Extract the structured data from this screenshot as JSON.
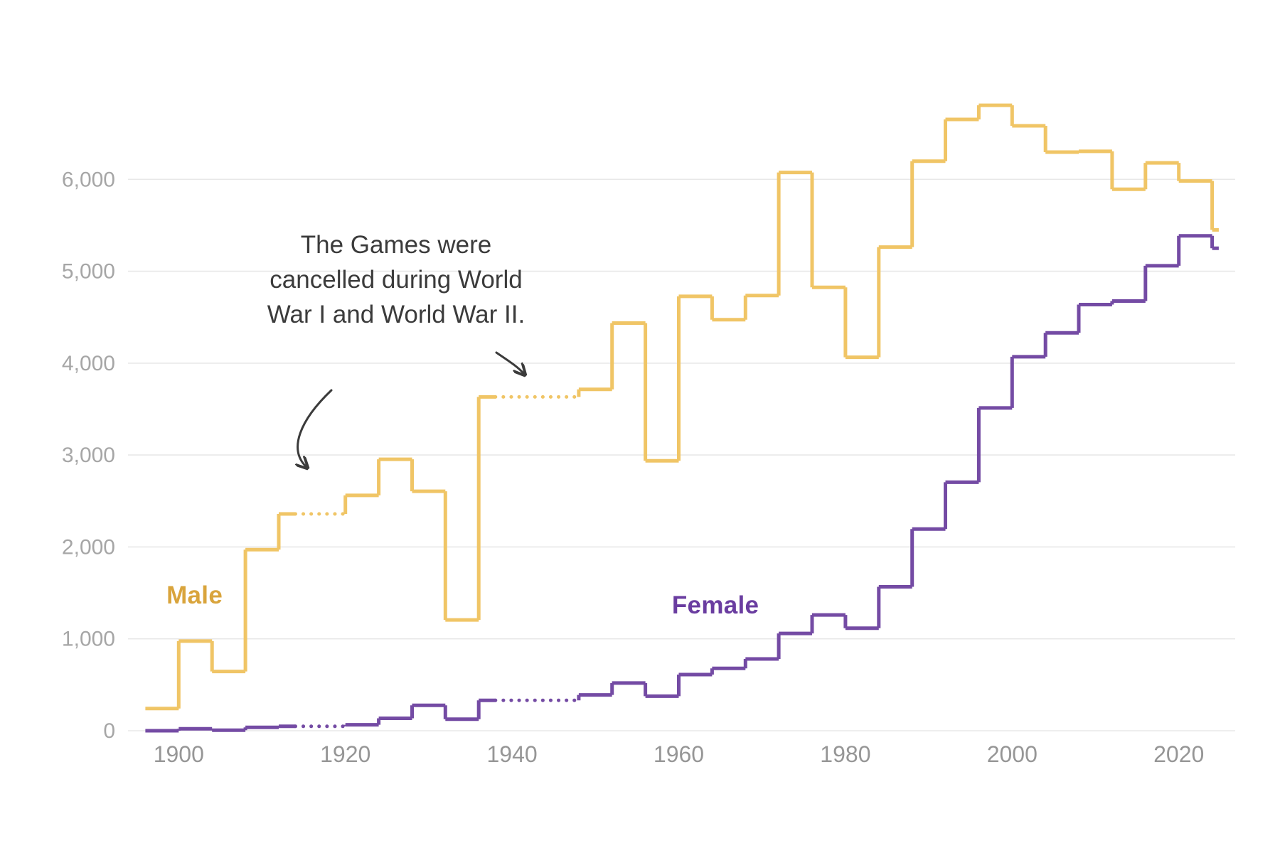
{
  "chart_data": {
    "type": "line",
    "variant": "step",
    "title": "",
    "xlabel": "",
    "ylabel": "",
    "annotation": {
      "lines": [
        "The Games were",
        "cancelled during World",
        "War I and World War II."
      ]
    },
    "years": [
      1896,
      1900,
      1904,
      1908,
      1912,
      1920,
      1924,
      1928,
      1932,
      1936,
      1948,
      1952,
      1956,
      1960,
      1964,
      1968,
      1972,
      1976,
      1980,
      1984,
      1988,
      1992,
      1996,
      2000,
      2004,
      2008,
      2012,
      2016,
      2020,
      2024
    ],
    "series": [
      {
        "name": "Male",
        "color": "#f0c566",
        "label_color": "#d9a43c",
        "label_pos": {
          "year": 1901.9,
          "value": 1469
        },
        "values": [
          241,
          975,
          645,
          1971,
          2359,
          2561,
          2954,
          2606,
          1206,
          3632,
          3714,
          4436,
          2938,
          4727,
          4473,
          4735,
          6075,
          4824,
          4064,
          5263,
          6197,
          6652,
          6806,
          6582,
          6296,
          6305,
          5892,
          6179,
          5982,
          5450
        ]
      },
      {
        "name": "Female",
        "color": "#744ba4",
        "label_color": "#6a3da0",
        "label_pos": {
          "year": 1964.4,
          "value": 1361
        },
        "values": [
          0,
          22,
          6,
          37,
          48,
          65,
          135,
          277,
          126,
          331,
          390,
          519,
          376,
          611,
          678,
          781,
          1059,
          1260,
          1115,
          1566,
          2194,
          2704,
          3512,
          4069,
          4329,
          4637,
          4676,
          5059,
          5386,
          5250
        ]
      }
    ],
    "cancelled_games": [
      1916,
      1940,
      1944
    ],
    "y_ticks": [
      {
        "value": 0,
        "label": "0"
      },
      {
        "value": 1000,
        "label": "1,000"
      },
      {
        "value": 2000,
        "label": "2,000"
      },
      {
        "value": 3000,
        "label": "3,000"
      },
      {
        "value": 4000,
        "label": "4,000"
      },
      {
        "value": 5000,
        "label": "5,000"
      },
      {
        "value": 6000,
        "label": "6,000"
      }
    ],
    "x_ticks": [
      {
        "value": 1900,
        "label": "1900"
      },
      {
        "value": 1920,
        "label": "1920"
      },
      {
        "value": 1940,
        "label": "1940"
      },
      {
        "value": 1960,
        "label": "1960"
      },
      {
        "value": 1980,
        "label": "1980"
      },
      {
        "value": 2000,
        "label": "2000"
      },
      {
        "value": 2020,
        "label": "2020"
      }
    ],
    "xlim": [
      1894,
      2026
    ],
    "ylim": [
      0,
      7000
    ],
    "grid": "horizontal",
    "legend_position": "inline-labels",
    "colors": {
      "grid": "#e8e8e8",
      "y_tick_label": "#a6a6a6",
      "x_tick_label": "#969696",
      "annotation": "#3b3b3b",
      "background": "#ffffff"
    }
  }
}
